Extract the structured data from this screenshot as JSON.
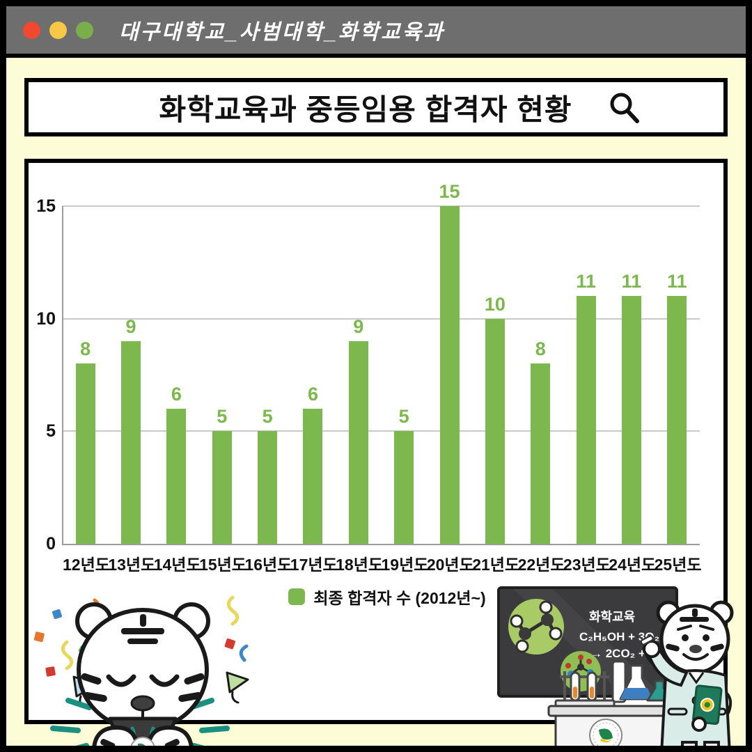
{
  "window": {
    "title": "대구대학교_사범대학_화학교육과",
    "traffic_lights": [
      "#F0492F",
      "#F6C845",
      "#7AAE4A"
    ]
  },
  "header": {
    "title": "화학교육과 중등임용 합격자 현황",
    "search_icon": "search-icon"
  },
  "chart_data": {
    "type": "bar",
    "title": "화학교육과 중등임용 합격자 현황",
    "categories": [
      "12년도",
      "13년도",
      "14년도",
      "15년도",
      "16년도",
      "17년도",
      "18년도",
      "19년도",
      "20년도",
      "21년도",
      "22년도",
      "23년도",
      "24년도",
      "25년도"
    ],
    "values": [
      8,
      9,
      6,
      5,
      5,
      6,
      9,
      5,
      15,
      10,
      8,
      11,
      11,
      11
    ],
    "xlabel": "",
    "ylabel": "",
    "ylim": [
      0,
      15
    ],
    "yticks": [
      0,
      5,
      10,
      15
    ],
    "grid": true,
    "bar_color": "#7CB84E",
    "grid_color": "#C9C9C9",
    "axis_color": "#9B9B9B",
    "legend": "최종 합격자 수 (2012년~)",
    "legend_position": "bottom"
  },
  "blackboard": {
    "line1": "화학교육",
    "line2": "C₂H₅OH + 3O₂",
    "line3": "→ 2CO₂ + 3H₂O"
  }
}
